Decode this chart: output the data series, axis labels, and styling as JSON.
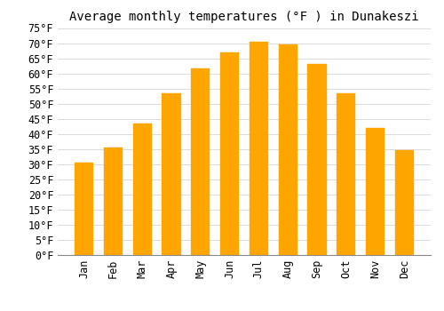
{
  "title": "Average monthly temperatures (°F ) in Dunakeszi",
  "months": [
    "Jan",
    "Feb",
    "Mar",
    "Apr",
    "May",
    "Jun",
    "Jul",
    "Aug",
    "Sep",
    "Oct",
    "Nov",
    "Dec"
  ],
  "values": [
    30.5,
    35.5,
    43.5,
    53.5,
    61.5,
    67.0,
    70.5,
    69.5,
    63.0,
    53.5,
    42.0,
    34.5
  ],
  "bar_color_top": "#FFA500",
  "bar_color_bottom": "#FFD080",
  "bar_edge_color": "#E89000",
  "ylim": [
    0,
    75
  ],
  "yticks": [
    0,
    5,
    10,
    15,
    20,
    25,
    30,
    35,
    40,
    45,
    50,
    55,
    60,
    65,
    70,
    75
  ],
  "background_color": "#FFFFFF",
  "grid_color": "#CCCCCC",
  "title_fontsize": 10,
  "tick_fontsize": 8.5,
  "bar_width": 0.65
}
